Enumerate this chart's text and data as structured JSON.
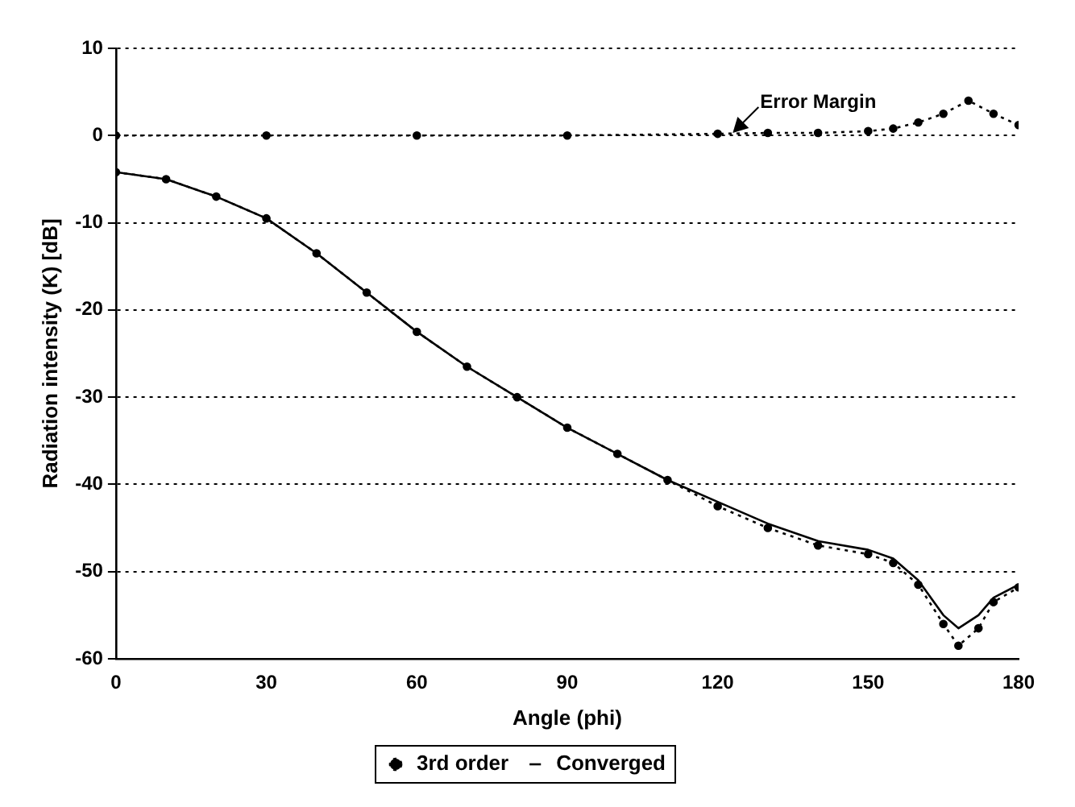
{
  "chart_data": {
    "type": "line",
    "xlabel": "Angle (phi)",
    "ylabel": "Radiation intensity (K) [dB]",
    "xlim": [
      0,
      180
    ],
    "xticks": [
      0,
      30,
      60,
      90,
      120,
      150,
      180
    ],
    "ylim": [
      -60,
      10
    ],
    "yticks": [
      -60,
      -50,
      -40,
      -30,
      -20,
      -10,
      0,
      10
    ],
    "grid": "y",
    "legend": "bottom",
    "annotations": [
      {
        "text": "Error Margin",
        "x": 123,
        "y": 0.3
      }
    ],
    "series": [
      {
        "name": "3rd order",
        "color": "#000000",
        "marker": "circle",
        "line_style": "dotted",
        "x": [
          0,
          10,
          20,
          30,
          40,
          50,
          60,
          70,
          80,
          90,
          100,
          110,
          120,
          130,
          140,
          150,
          155,
          160,
          165,
          168,
          172,
          175,
          180
        ],
        "values": [
          -4.2,
          -5,
          -7,
          -9.5,
          -13.5,
          -18,
          -22.5,
          -26.5,
          -30,
          -33.5,
          -36.5,
          -39.5,
          -42.5,
          -45,
          -47,
          -48,
          -49,
          -51.5,
          -56,
          -58.5,
          -56.5,
          -53.5,
          -51.8
        ]
      },
      {
        "name": "Converged",
        "color": "#000000",
        "marker": "none",
        "line_style": "solid",
        "x": [
          0,
          10,
          20,
          30,
          40,
          50,
          60,
          70,
          80,
          90,
          100,
          110,
          120,
          130,
          140,
          150,
          155,
          160,
          165,
          168,
          172,
          175,
          180
        ],
        "values": [
          -4.2,
          -5,
          -7,
          -9.5,
          -13.5,
          -18,
          -22.5,
          -26.5,
          -30,
          -33.5,
          -36.5,
          -39.5,
          -42,
          -44.5,
          -46.5,
          -47.5,
          -48.5,
          -51,
          -55,
          -56.5,
          -55,
          -53,
          -51.5
        ]
      },
      {
        "color": "#000000",
        "marker": "circle",
        "line_style": "dotted",
        "x": [
          0,
          30,
          60,
          90,
          120,
          130,
          140,
          150,
          155,
          160,
          165,
          170,
          175,
          180
        ],
        "values": [
          0,
          0,
          0,
          0,
          0.2,
          0.3,
          0.3,
          0.5,
          0.8,
          1.5,
          2.5,
          4,
          2.5,
          1.2
        ]
      }
    ]
  }
}
